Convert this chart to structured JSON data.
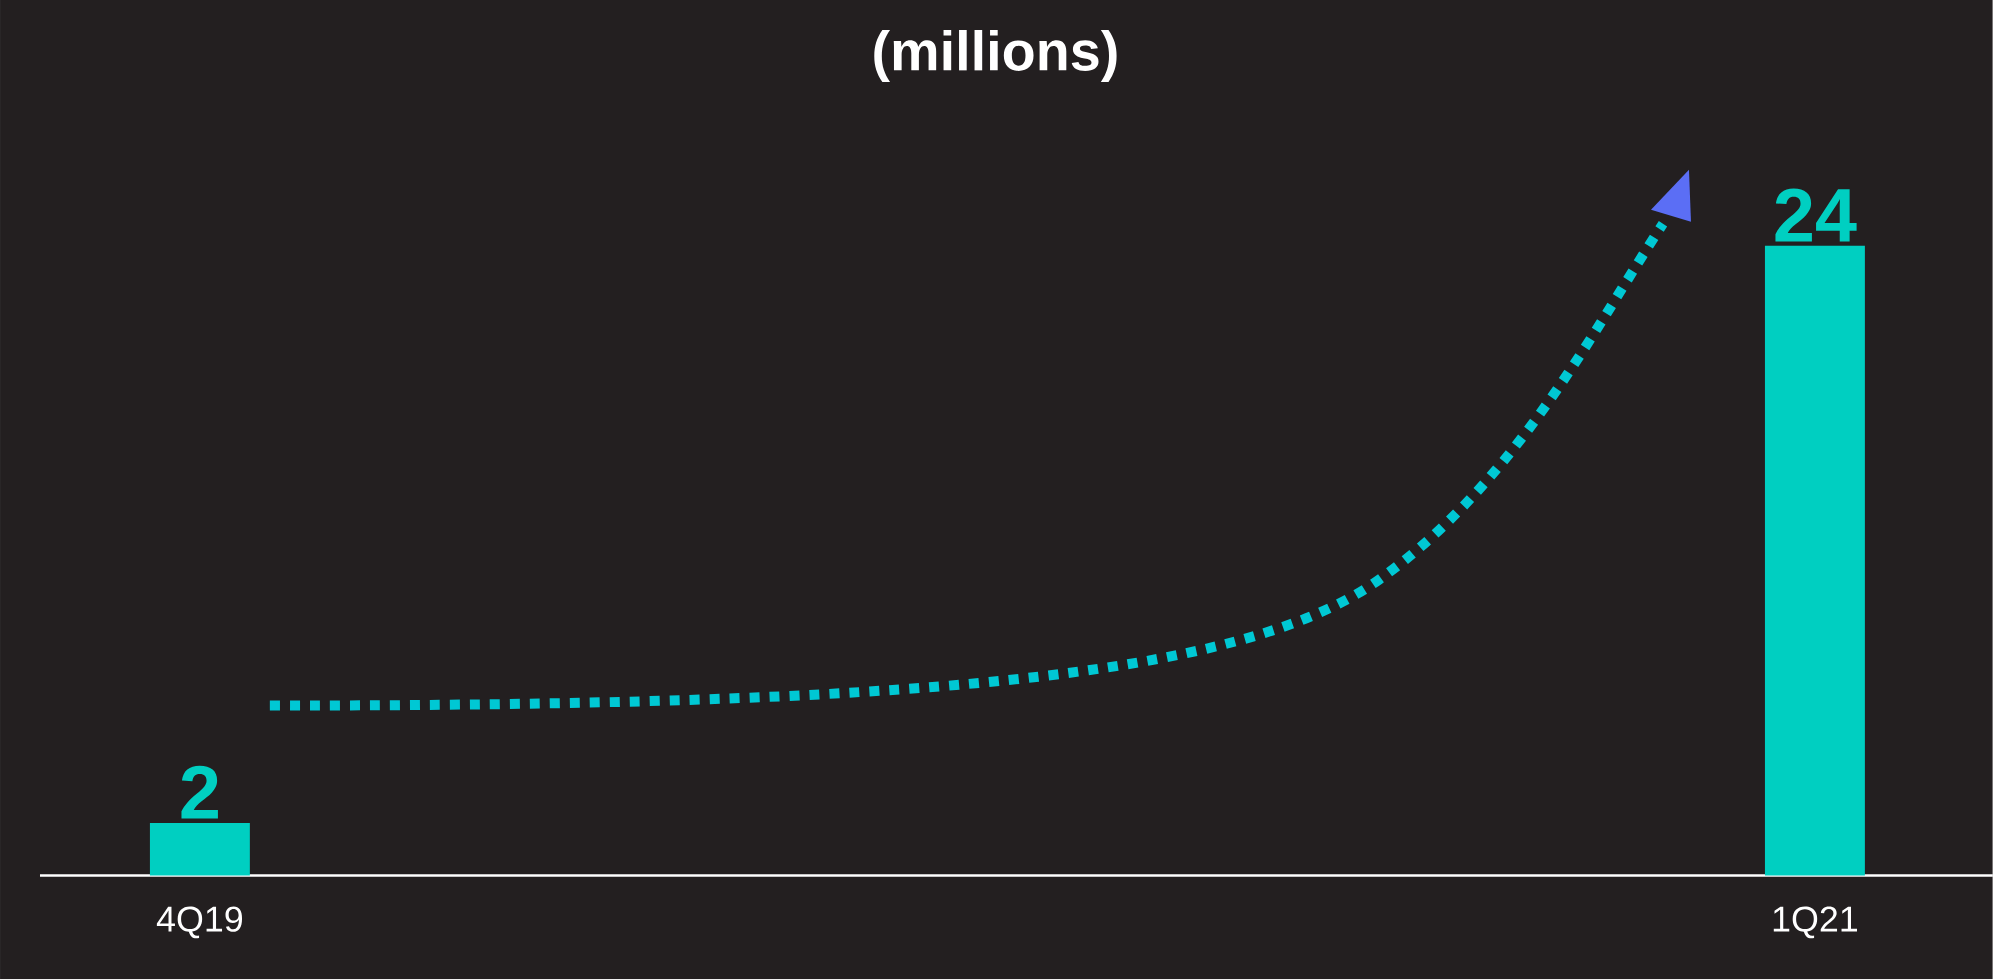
{
  "chart_data": {
    "type": "bar",
    "title": "(millions)",
    "categories": [
      "4Q19",
      "1Q21"
    ],
    "values": [
      2,
      24
    ],
    "color": "#00cfc1",
    "data_labels": true
  }
}
